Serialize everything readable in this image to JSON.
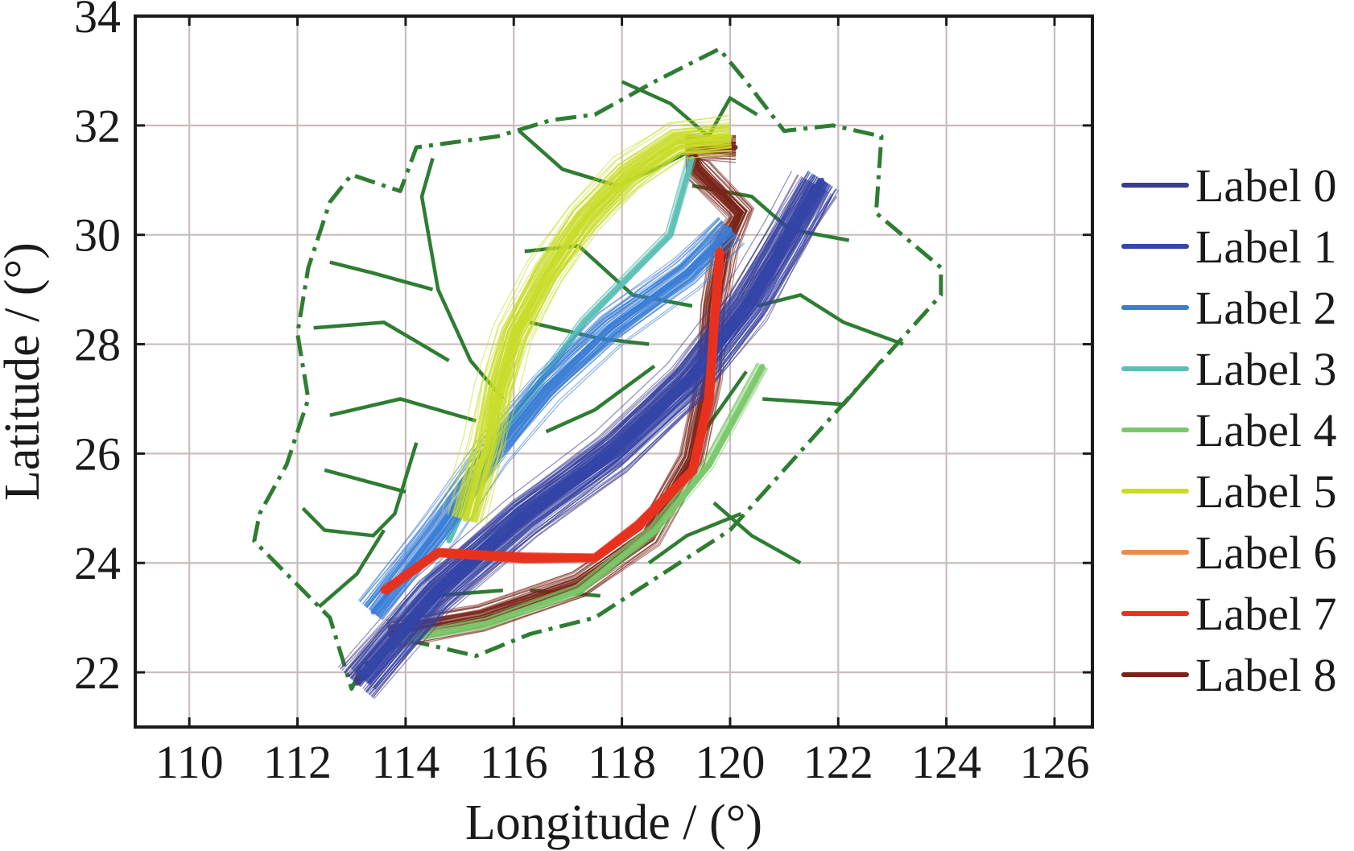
{
  "chart_data": {
    "type": "line",
    "title": "",
    "xlabel": "Longitude / (°)",
    "ylabel": "Latitude / (°)",
    "xlim": [
      109,
      126.7
    ],
    "ylim": [
      21,
      34
    ],
    "xticks": [
      110,
      112,
      114,
      116,
      118,
      120,
      122,
      124,
      126
    ],
    "yticks": [
      22,
      24,
      26,
      28,
      30,
      32,
      34
    ],
    "grid": true,
    "legend_position": "right",
    "series": [
      {
        "name": "Label 0",
        "color": "#3d3b8e",
        "path": [
          [
            113.1,
            21.8
          ],
          [
            114.5,
            23.4
          ],
          [
            116.2,
            24.8
          ],
          [
            117.8,
            26.0
          ],
          [
            119.2,
            27.3
          ],
          [
            120.3,
            28.7
          ],
          [
            121.1,
            30.0
          ],
          [
            121.6,
            30.9
          ]
        ]
      },
      {
        "name": "Label 1",
        "color": "#3446a8",
        "path": [
          [
            113.2,
            21.9
          ],
          [
            114.6,
            23.5
          ],
          [
            116.2,
            24.9
          ],
          [
            117.9,
            26.1
          ],
          [
            119.3,
            27.4
          ],
          [
            120.4,
            28.8
          ],
          [
            121.2,
            30.2
          ],
          [
            121.7,
            31.0
          ]
        ]
      },
      {
        "name": "Label 2",
        "color": "#3a7dd6",
        "path": [
          [
            113.4,
            23.1
          ],
          [
            114.6,
            24.6
          ],
          [
            115.6,
            26.0
          ],
          [
            116.6,
            27.2
          ],
          [
            117.8,
            28.3
          ],
          [
            119.2,
            29.3
          ],
          [
            120.0,
            30.1
          ]
        ]
      },
      {
        "name": "Label 3",
        "color": "#5bbfb5",
        "path": [
          [
            114.8,
            24.4
          ],
          [
            115.6,
            26.1
          ],
          [
            117.3,
            28.4
          ],
          [
            118.9,
            30.0
          ],
          [
            119.3,
            31.4
          ]
        ]
      },
      {
        "name": "Label 4",
        "color": "#7bc86b",
        "path": [
          [
            113.9,
            22.6
          ],
          [
            115.5,
            22.9
          ],
          [
            117.2,
            23.5
          ],
          [
            118.6,
            24.6
          ],
          [
            119.6,
            25.8
          ],
          [
            120.6,
            27.6
          ]
        ]
      },
      {
        "name": "Label 5",
        "color": "#c8dd2a",
        "path": [
          [
            115.1,
            24.8
          ],
          [
            115.5,
            26.2
          ],
          [
            115.7,
            27.2
          ],
          [
            116.0,
            28.2
          ],
          [
            116.6,
            29.3
          ],
          [
            117.3,
            30.3
          ],
          [
            118.1,
            31.1
          ],
          [
            119.0,
            31.7
          ],
          [
            120.0,
            31.8
          ]
        ]
      },
      {
        "name": "Label 6",
        "color": "#ef8a4a",
        "path": []
      },
      {
        "name": "Label 7",
        "color": "#e8321e",
        "path": [
          [
            113.6,
            23.5
          ],
          [
            114.6,
            24.2
          ],
          [
            116.2,
            24.1
          ],
          [
            117.5,
            24.1
          ],
          [
            118.3,
            24.7
          ],
          [
            119.3,
            25.7
          ],
          [
            119.6,
            27.0
          ],
          [
            119.7,
            28.4
          ],
          [
            119.8,
            29.7
          ]
        ]
      },
      {
        "name": "Label 8",
        "color": "#7a2418",
        "path": [
          [
            113.7,
            22.7
          ],
          [
            115.4,
            23.0
          ],
          [
            117.2,
            23.6
          ],
          [
            118.5,
            24.5
          ],
          [
            119.3,
            25.9
          ],
          [
            119.6,
            27.4
          ],
          [
            119.7,
            28.7
          ],
          [
            119.9,
            29.8
          ],
          [
            120.2,
            30.4
          ],
          [
            119.4,
            31.2
          ],
          [
            119.3,
            31.6
          ],
          [
            120.1,
            31.6
          ]
        ]
      }
    ],
    "airspace_boundary": [
      [
        113.0,
        21.7
      ],
      [
        113.2,
        22.1
      ],
      [
        114.0,
        22.6
      ],
      [
        115.3,
        22.3
      ],
      [
        116.3,
        22.7
      ],
      [
        117.5,
        23.0
      ],
      [
        120.0,
        24.6
      ],
      [
        123.9,
        28.9
      ],
      [
        123.9,
        29.4
      ],
      [
        122.7,
        30.4
      ],
      [
        122.8,
        31.8
      ],
      [
        121.9,
        32.0
      ],
      [
        121.0,
        31.9
      ],
      [
        120.3,
        32.8
      ],
      [
        119.8,
        33.4
      ],
      [
        118.6,
        32.8
      ],
      [
        117.5,
        32.2
      ],
      [
        116.7,
        32.1
      ],
      [
        115.7,
        31.8
      ],
      [
        114.2,
        31.6
      ],
      [
        113.9,
        30.8
      ],
      [
        113.0,
        31.1
      ],
      [
        112.6,
        30.6
      ],
      [
        112.2,
        29.4
      ],
      [
        112.0,
        28.2
      ],
      [
        112.2,
        27.0
      ],
      [
        111.8,
        25.8
      ],
      [
        111.3,
        24.9
      ],
      [
        111.2,
        24.4
      ],
      [
        112.0,
        23.6
      ],
      [
        112.6,
        23.0
      ],
      [
        113.0,
        21.7
      ]
    ],
    "sector_lines": [
      [
        [
          114.5,
          31.4
        ],
        [
          114.3,
          30.7
        ],
        [
          114.6,
          29.0
        ],
        [
          115.2,
          27.7
        ],
        [
          115.8,
          27.0
        ]
      ],
      [
        [
          114.5,
          29.0
        ],
        [
          113.4,
          29.3
        ],
        [
          112.6,
          29.5
        ]
      ],
      [
        [
          114.8,
          27.7
        ],
        [
          113.6,
          28.4
        ],
        [
          112.3,
          28.3
        ]
      ],
      [
        [
          115.3,
          26.6
        ],
        [
          113.9,
          27.0
        ],
        [
          112.6,
          26.7
        ]
      ],
      [
        [
          114.2,
          26.2
        ],
        [
          113.8,
          24.9
        ],
        [
          113.4,
          24.5
        ],
        [
          112.5,
          24.6
        ],
        [
          112.1,
          25.0
        ]
      ],
      [
        [
          114.0,
          25.3
        ],
        [
          112.5,
          25.7
        ]
      ],
      [
        [
          113.6,
          24.6
        ],
        [
          113.1,
          23.8
        ],
        [
          112.4,
          23.2
        ]
      ],
      [
        [
          116.1,
          31.9
        ],
        [
          116.9,
          31.2
        ],
        [
          117.9,
          30.9
        ],
        [
          118.6,
          31.2
        ],
        [
          119.4,
          31.6
        ]
      ],
      [
        [
          118.0,
          32.8
        ],
        [
          118.9,
          32.4
        ],
        [
          119.6,
          31.8
        ],
        [
          120.0,
          32.5
        ],
        [
          120.5,
          32.2
        ]
      ],
      [
        [
          119.3,
          30.9
        ],
        [
          120.4,
          30.7
        ],
        [
          121.1,
          30.1
        ],
        [
          122.2,
          29.9
        ]
      ],
      [
        [
          116.2,
          29.7
        ],
        [
          117.2,
          29.8
        ],
        [
          118.2,
          28.9
        ],
        [
          119.3,
          28.7
        ]
      ],
      [
        [
          116.3,
          28.4
        ],
        [
          117.6,
          28.1
        ],
        [
          118.5,
          28.0
        ]
      ],
      [
        [
          116.6,
          26.4
        ],
        [
          117.5,
          26.8
        ],
        [
          118.6,
          27.6
        ]
      ],
      [
        [
          119.3,
          26.1
        ],
        [
          120.3,
          27.5
        ]
      ],
      [
        [
          120.5,
          28.7
        ],
        [
          121.3,
          28.9
        ],
        [
          122.1,
          28.4
        ],
        [
          123.2,
          28.0
        ]
      ],
      [
        [
          120.6,
          27.0
        ],
        [
          122.1,
          26.9
        ],
        [
          122.8,
          27.7
        ]
      ],
      [
        [
          119.7,
          25.1
        ],
        [
          120.4,
          24.5
        ],
        [
          121.3,
          24.0
        ]
      ],
      [
        [
          118.5,
          24.0
        ],
        [
          119.2,
          24.5
        ],
        [
          120.2,
          24.9
        ]
      ],
      [
        [
          116.3,
          23.5
        ],
        [
          117.6,
          23.4
        ]
      ],
      [
        [
          114.5,
          23.4
        ],
        [
          115.8,
          23.5
        ]
      ]
    ]
  }
}
